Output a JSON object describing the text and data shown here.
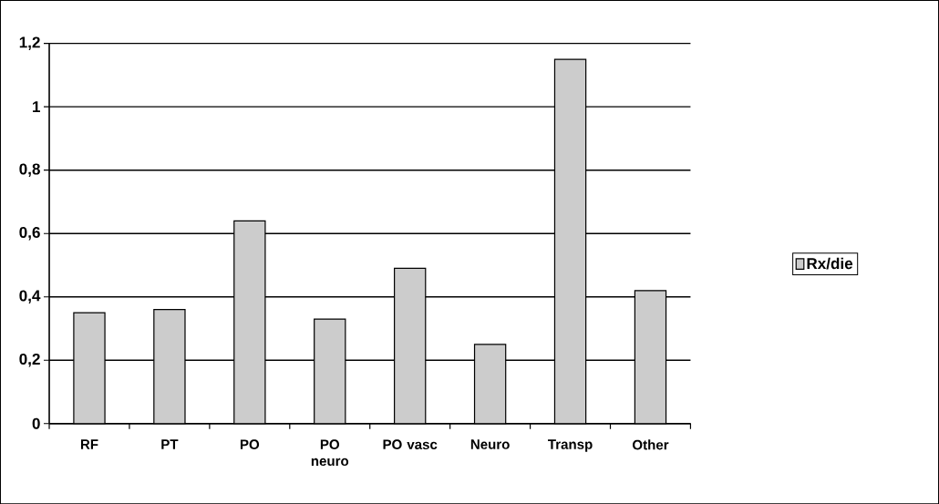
{
  "chart_data": {
    "type": "bar",
    "categories": [
      "RF",
      "PT",
      "PO",
      "PO neuro",
      "PO vasc",
      "Neuro",
      "Transp",
      "Other"
    ],
    "series": [
      {
        "name": "Rx/die",
        "color": "#cccccc",
        "values": [
          0.35,
          0.36,
          0.64,
          0.33,
          0.49,
          0.25,
          1.15,
          0.42
        ]
      }
    ],
    "ylim": [
      0,
      1.2
    ],
    "yticks": [
      0,
      {
        "value": 0.2,
        "label": "0,2"
      },
      {
        "value": 0.4,
        "label": "0,4"
      },
      {
        "value": 0.6,
        "label": "0,6"
      },
      {
        "value": 0.8,
        "label": "0,8"
      },
      1,
      {
        "value": 1.2,
        "label": "1,2"
      }
    ],
    "grid": "y",
    "legend": "right"
  }
}
